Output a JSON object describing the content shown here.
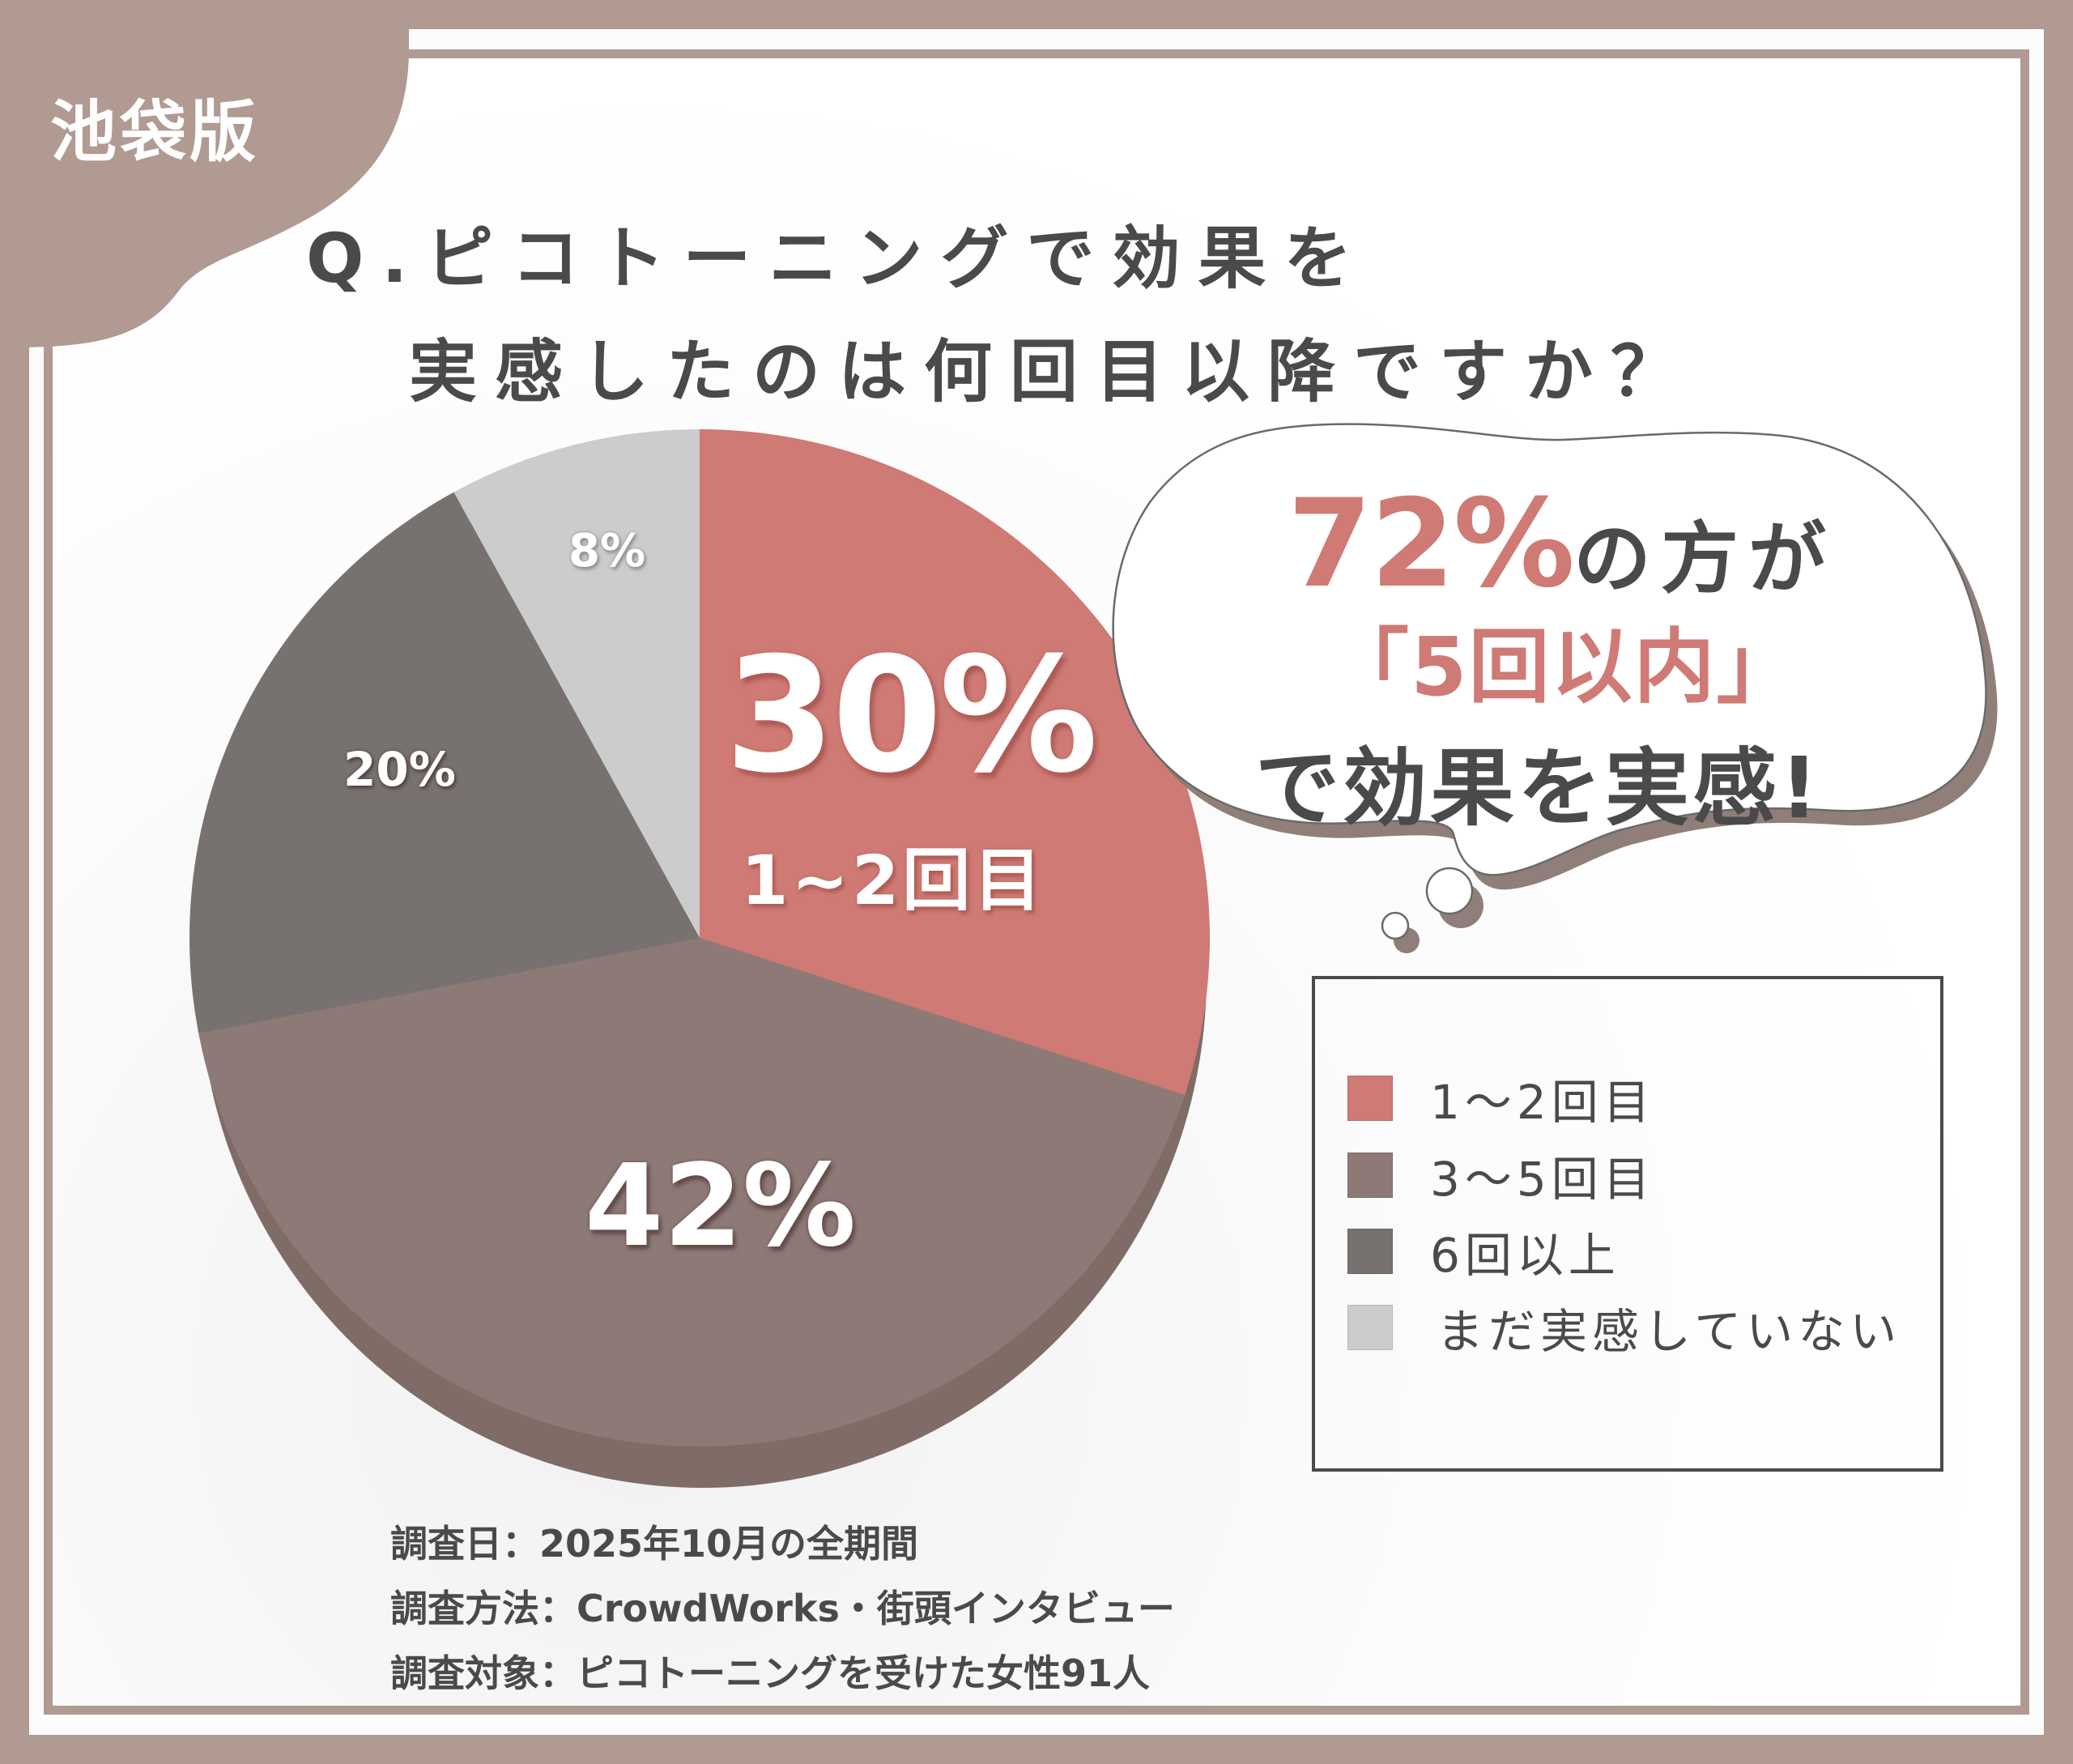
{
  "badge": {
    "label": "池袋版",
    "color": "#b09a92"
  },
  "title": {
    "line1": "Q.ピコトーニングで効果を",
    "line2": "実感したのは何回目以降ですか？"
  },
  "colors": {
    "frame": "#b09a92",
    "text_dark": "#4a4a4a",
    "accent": "#cf7a74",
    "pie_side": "#7f6c66",
    "bubble_shadow": "#8a7872",
    "bubble_stroke": "#6a6a6a"
  },
  "chart_data": {
    "type": "pie",
    "title": "Q.ピコトーニングで効果を実感したのは何回目以降ですか？",
    "start_angle_deg": 0,
    "direction": "clockwise",
    "categories": [
      "1～2回目",
      "3～5回目",
      "6回以上",
      "まだ実感していない"
    ],
    "values": [
      30,
      42,
      20,
      8
    ],
    "unit": "%",
    "colors": [
      "#cf7a74",
      "#8d7a77",
      "#777270",
      "#cccccc"
    ],
    "slice_labels": [
      "30%",
      "42%",
      "20%",
      "8%"
    ],
    "highlight_sublabel": "1~2回目",
    "legend_position": "right",
    "three_d": true
  },
  "bubble": {
    "line1_accent": "72%",
    "line1_rest": "の方が",
    "line2": "「5回以内」",
    "line3": "で効果を実感!"
  },
  "legend": {
    "items": [
      {
        "label": "1～2回目",
        "color": "#cf7a74"
      },
      {
        "label": "3～5回目",
        "color": "#8d7a77"
      },
      {
        "label": "6回以上",
        "color": "#777270"
      },
      {
        "label": "まだ実感していない",
        "color": "#cccccc"
      }
    ]
  },
  "survey": {
    "date": "調査日：2025年10月の全期間",
    "method": "調査方法：CrowdWorks・街頭インタビュー",
    "target": "調査対象：ピコトーニングを受けた女性91人"
  }
}
